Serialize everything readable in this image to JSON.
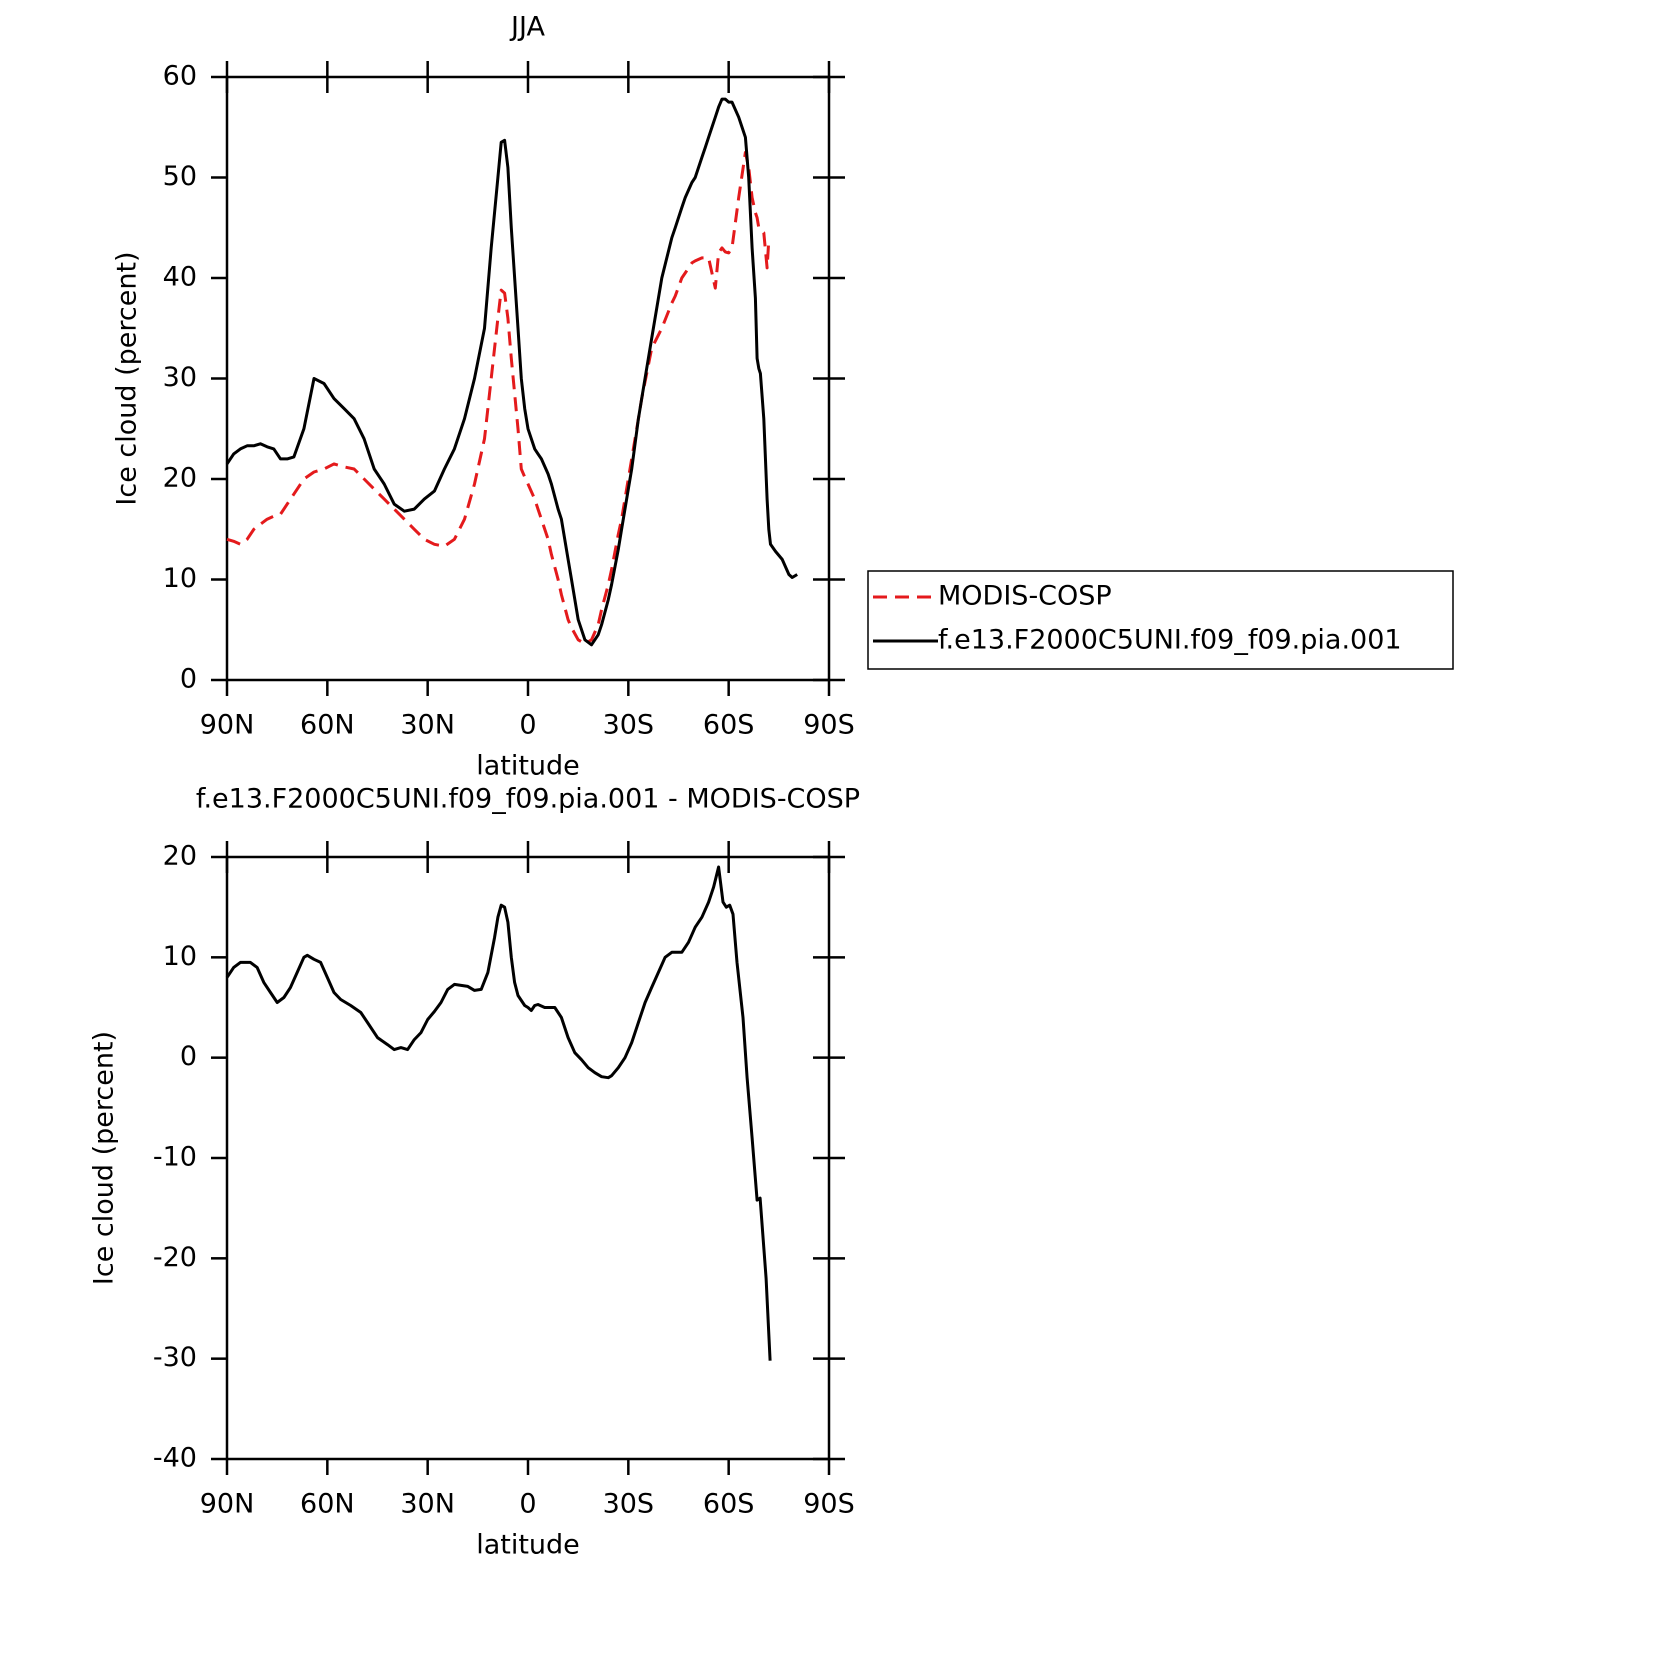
{
  "chart_data": [
    {
      "type": "line",
      "title": "JJA",
      "xlabel": "latitude",
      "ylabel": "Ice cloud (percent)",
      "x": [
        90,
        88,
        86,
        84,
        82,
        80,
        78,
        76,
        74,
        72,
        70,
        67,
        64,
        61,
        58,
        55,
        52,
        49,
        46,
        43,
        40,
        37,
        34,
        31,
        28,
        25,
        22,
        19,
        16,
        13,
        11,
        9,
        8,
        7,
        6,
        5,
        3,
        2,
        1,
        0,
        -2,
        -3,
        -4,
        -6,
        -7,
        -9,
        -10,
        -12,
        -13,
        -15,
        -17,
        -19,
        -21,
        -22,
        -24,
        -25,
        -27,
        -28,
        -30,
        -31,
        -33,
        -34,
        -37,
        -40,
        -43,
        -44,
        -46,
        -47,
        -49,
        -50,
        -52,
        -53,
        -54,
        -56,
        -57,
        -58,
        -59,
        -60,
        -61,
        -63,
        -65,
        -66,
        -67,
        -68,
        -68.5,
        -69,
        -69.5,
        -70.5,
        -71.5,
        -72,
        -72.5,
        -74,
        -76,
        -78,
        -79,
        -80.5
      ],
      "series": [
        {
          "name": "MODIS-COSP",
          "color": "#e41a1c",
          "dashed": true,
          "values": [
            14,
            13.8,
            13.5,
            14,
            15,
            15.5,
            16,
            16.3,
            16.5,
            17.5,
            18.5,
            20,
            20.7,
            21,
            21.5,
            21.2,
            21,
            20,
            19,
            18,
            17,
            16,
            15,
            14,
            13.5,
            13.3,
            14,
            16,
            19.5,
            24,
            30,
            36,
            38.8,
            38.5,
            36,
            32,
            25,
            21,
            20.2,
            19.5,
            18,
            17,
            16,
            14,
            12.5,
            10,
            8.5,
            6,
            5.2,
            4,
            3.6,
            4,
            5.5,
            7,
            9.5,
            11,
            14.5,
            16,
            20,
            22,
            26,
            28,
            33,
            35,
            37.5,
            38.2,
            40,
            40.5,
            41.5,
            41.7,
            42,
            42,
            42,
            39,
            42.5,
            43,
            42.6,
            42.5,
            43,
            48,
            52.5,
            51,
            48,
            46.5,
            46,
            45,
            44.8,
            44.5,
            41,
            43.8,
            null,
            null,
            null,
            null,
            null,
            null
          ]
        },
        {
          "name": "f.e13.F2000C5UNI.f09_f09.pia.001",
          "color": "#000000",
          "dashed": false,
          "values": [
            21.5,
            22.5,
            23,
            23.3,
            23.3,
            23.5,
            23.2,
            23,
            22,
            22,
            22.2,
            25,
            30,
            29.5,
            28,
            27,
            26,
            24,
            21,
            19.5,
            17.5,
            16.8,
            17,
            18,
            18.8,
            21,
            23,
            26,
            30,
            35,
            43,
            50,
            53.5,
            53.7,
            51,
            45,
            35,
            30,
            27,
            25,
            23,
            22.5,
            22,
            20.5,
            19.5,
            17,
            16,
            12,
            10,
            6,
            4,
            3.5,
            4.5,
            5.5,
            8,
            9.5,
            13,
            15,
            19,
            21,
            26,
            28,
            34,
            40,
            44,
            45,
            47,
            48,
            49.5,
            50,
            52,
            53,
            54,
            56,
            57,
            57.8,
            57.8,
            57.5,
            57.5,
            56,
            54,
            50,
            43,
            38,
            32,
            31,
            30.5,
            26,
            18,
            15,
            13.5,
            12.8,
            12,
            10.5,
            10.2,
            10.5
          ]
        }
      ],
      "xlim": [
        90,
        -90
      ],
      "xticks": [
        {
          "value": 90,
          "label": "90N"
        },
        {
          "value": 60,
          "label": "60N"
        },
        {
          "value": 30,
          "label": "30N"
        },
        0,
        {
          "value": -30,
          "label": "30S"
        },
        {
          "value": -60,
          "label": "60S"
        },
        {
          "value": -90,
          "label": "90S"
        }
      ],
      "ylim": [
        0,
        60
      ],
      "yticks": [
        0,
        10,
        20,
        30,
        40,
        50,
        60
      ],
      "legend": "right"
    },
    {
      "type": "line",
      "title": "f.e13.F2000C5UNI.f09_f09.pia.001 - MODIS-COSP",
      "xlabel": "latitude",
      "ylabel": "Ice cloud (percent)",
      "x": [
        90,
        88,
        86,
        83,
        81,
        79,
        77,
        75,
        73,
        71,
        69,
        67,
        66,
        64,
        62,
        60,
        58,
        56,
        53,
        50,
        48,
        45,
        42,
        40,
        38,
        36,
        34,
        32,
        30,
        28,
        26,
        24,
        22,
        20,
        18,
        16,
        14,
        12,
        10,
        9,
        8,
        7,
        6,
        5,
        4,
        3,
        1,
        0,
        -1,
        -2,
        -3,
        -5,
        -8,
        -10,
        -12,
        -14,
        -16,
        -18,
        -20,
        -22,
        -24,
        -25,
        -27,
        -29,
        -31,
        -33,
        -35,
        -37,
        -39,
        -41,
        -43,
        -46,
        -48,
        -50,
        -52,
        -54,
        -55.5,
        -57,
        -58.3,
        -59.3,
        -60.3,
        -61.3,
        -62.5,
        -64.3,
        -65.5,
        -67,
        -68.5,
        -69.4,
        -71.2,
        -72.4
      ],
      "series": [
        {
          "color": "#000000",
          "values": [
            8,
            9,
            9.5,
            9.5,
            9,
            7.5,
            6.5,
            5.5,
            6,
            7,
            8.5,
            10,
            10.2,
            9.8,
            9.5,
            8,
            6.5,
            5.8,
            5.2,
            4.5,
            3.5,
            2,
            1.3,
            0.8,
            1,
            0.8,
            1.8,
            2.5,
            3.8,
            4.6,
            5.5,
            6.8,
            7.3,
            7.2,
            7.1,
            6.7,
            6.8,
            8.5,
            12,
            14,
            15.2,
            15,
            13.5,
            10,
            7.5,
            6.2,
            5.2,
            5,
            4.7,
            5.2,
            5.3,
            5,
            5,
            4,
            2,
            0.5,
            -0.2,
            -1,
            -1.5,
            -1.9,
            -2,
            -1.8,
            -1,
            0,
            1.5,
            3.5,
            5.5,
            7,
            8.5,
            10,
            10.5,
            10.5,
            11.5,
            13,
            14,
            15.5,
            17,
            19,
            15.5,
            15,
            15.2,
            14.3,
            9.5,
            4,
            -2,
            -8,
            -14.2,
            -14,
            -22,
            -30.2
          ]
        }
      ],
      "xlim": [
        90,
        -90
      ],
      "xticks": [
        {
          "value": 90,
          "label": "90N"
        },
        {
          "value": 60,
          "label": "60N"
        },
        {
          "value": 30,
          "label": "30N"
        },
        0,
        {
          "value": -30,
          "label": "30S"
        },
        {
          "value": -60,
          "label": "60S"
        },
        {
          "value": -90,
          "label": "90S"
        }
      ],
      "ylim": [
        -40,
        20
      ],
      "yticks": [
        -40,
        -30,
        -20,
        -10,
        0,
        10,
        20
      ]
    }
  ]
}
